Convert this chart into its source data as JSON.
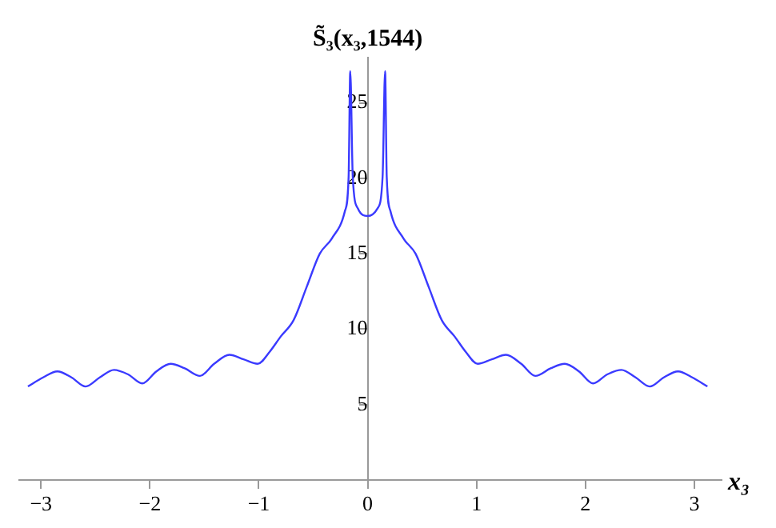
{
  "chart_data": {
    "type": "line",
    "ylabel": "S̃₃(x₃,1544)",
    "xlabel": "x₃",
    "x": [
      -3.12,
      -2.98,
      -2.85,
      -2.72,
      -2.59,
      -2.46,
      -2.33,
      -2.2,
      -2.07,
      -1.94,
      -1.81,
      -1.68,
      -1.54,
      -1.41,
      -1.27,
      -1.14,
      -1.01,
      -0.9,
      -0.8,
      -0.68,
      -0.56,
      -0.44,
      -0.33,
      -0.21,
      -0.175,
      -0.16,
      -0.137,
      -0.09,
      0,
      0.09,
      0.137,
      0.16,
      0.175,
      0.21,
      0.33,
      0.44,
      0.56,
      0.68,
      0.8,
      0.9,
      1.01,
      1.14,
      1.27,
      1.41,
      1.54,
      1.68,
      1.81,
      1.94,
      2.07,
      2.2,
      2.33,
      2.46,
      2.59,
      2.72,
      2.85,
      2.98,
      3.12
    ],
    "series": [
      {
        "color": "#3a3aff",
        "values": [
          6.2,
          6.8,
          7.2,
          6.8,
          6.2,
          6.8,
          7.3,
          7,
          6.4,
          7.2,
          7.7,
          7.4,
          6.9,
          7.7,
          8.3,
          8,
          7.7,
          8.5,
          9.5,
          10.6,
          12.8,
          15,
          16,
          17.8,
          20.1,
          27.1,
          20.1,
          18,
          17.5,
          18,
          20.1,
          27.1,
          20.1,
          17.8,
          16,
          15,
          12.8,
          10.6,
          9.5,
          8.5,
          7.7,
          8,
          8.3,
          7.7,
          6.9,
          7.4,
          7.7,
          7.2,
          6.4,
          7,
          7.3,
          6.8,
          6.2,
          6.8,
          7.2,
          6.8,
          6.2
        ]
      }
    ],
    "xlim": [
      -3.2,
      3.25
    ],
    "ylim": [
      0,
      28
    ],
    "xticks": [
      -3,
      -2,
      -1,
      0,
      1,
      2,
      3
    ],
    "yticks": [
      5,
      10,
      15,
      20,
      25
    ],
    "grid": false,
    "legend": false,
    "marker": "none",
    "line_style": "solid"
  }
}
